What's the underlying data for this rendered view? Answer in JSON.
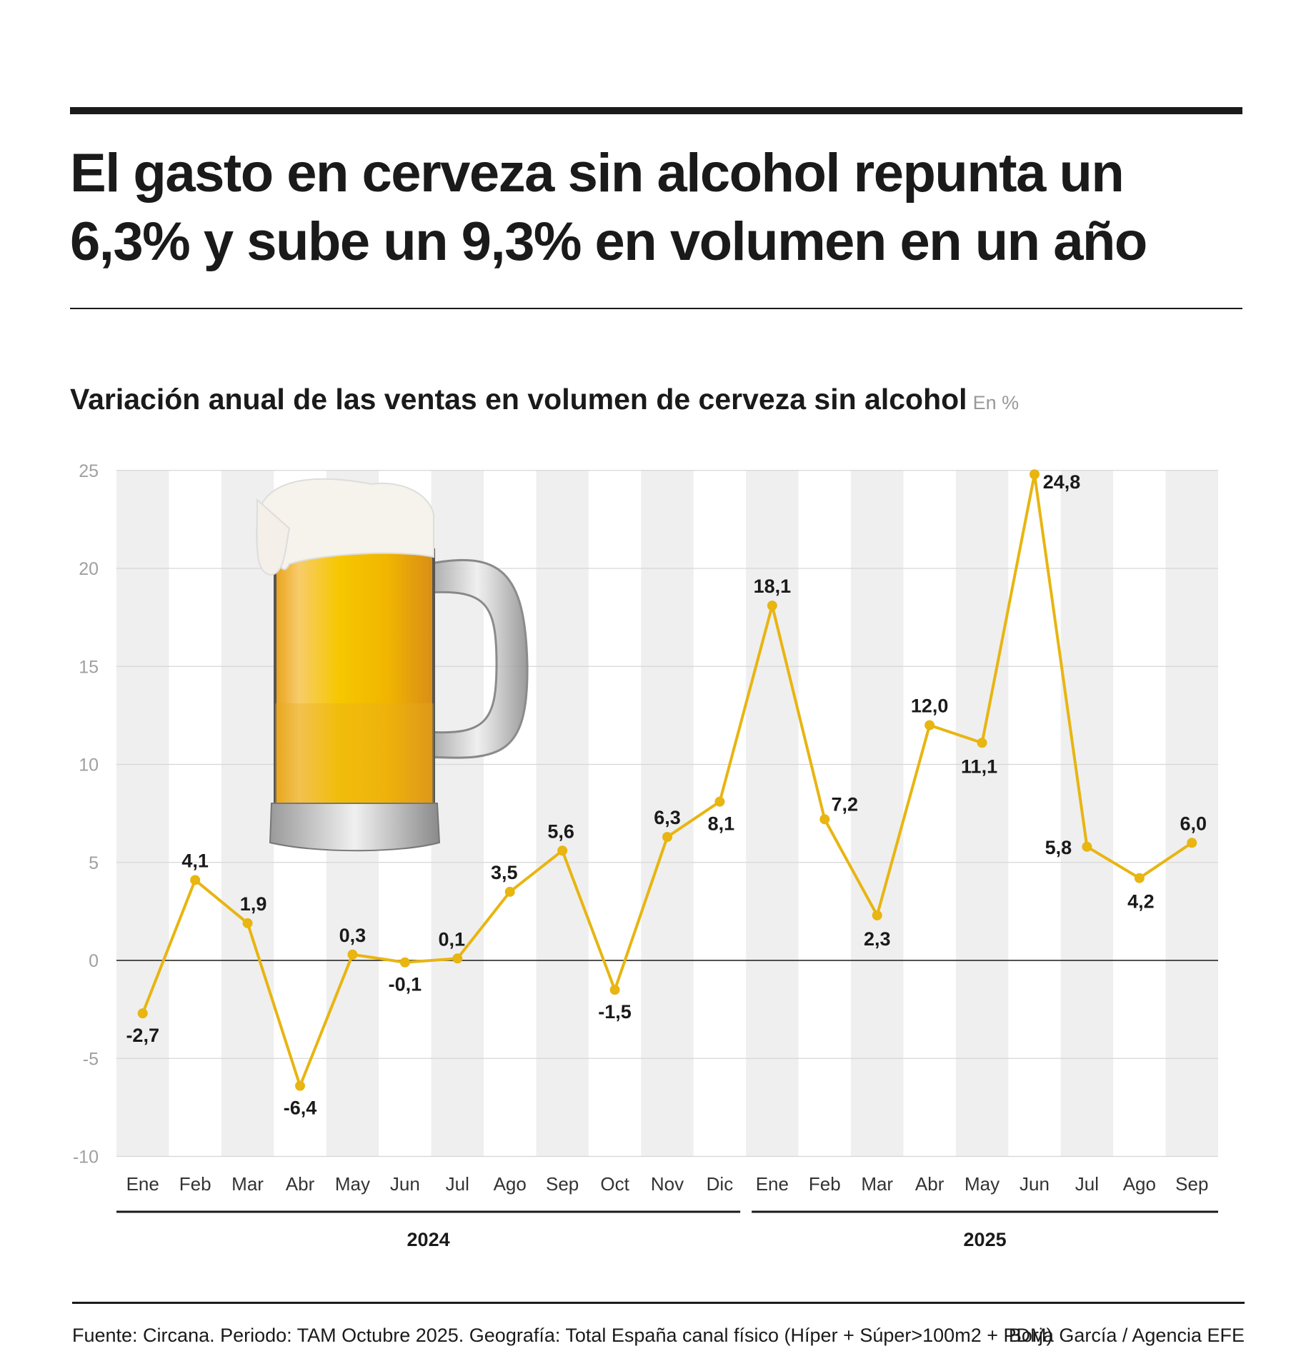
{
  "title": "El gasto en cerveza sin alcohol repunta un 6,3% y sube un 9,3% en volumen en un año",
  "footer": {
    "source": "Fuente: Circana. Periodo: TAM Octubre 2025. Geografía: Total España canal físico (Híper + Súper>100m2 + PDM)",
    "credit": "Borja García / Agencia EFE"
  },
  "chart_data": {
    "type": "line",
    "title": "Variación anual de las ventas en volumen de cerveza sin alcohol",
    "unit": "En %",
    "ylim": [
      -10,
      25
    ],
    "yticks": [
      25,
      20,
      15,
      10,
      5,
      0,
      -5,
      -10
    ],
    "ytick_labels": [
      "25",
      "20",
      "15",
      "10",
      "5",
      "0",
      "-5",
      "-10"
    ],
    "grid": true,
    "color": "#e8b511",
    "categories": [
      "Ene",
      "Feb",
      "Mar",
      "Abr",
      "May",
      "Jun",
      "Jul",
      "Ago",
      "Sep",
      "Oct",
      "Nov",
      "Dic",
      "Ene",
      "Feb",
      "Mar",
      "Abr",
      "May",
      "Jun",
      "Jul",
      "Ago",
      "Sep"
    ],
    "years": [
      {
        "label": "2024",
        "months": 12
      },
      {
        "label": "2025",
        "months": 9
      }
    ],
    "values": [
      -2.7,
      4.1,
      1.9,
      -6.4,
      0.3,
      -0.1,
      0.1,
      3.5,
      5.6,
      -1.5,
      6.3,
      8.1,
      18.1,
      7.2,
      2.3,
      12.0,
      11.1,
      24.8,
      5.8,
      4.2,
      6.0
    ],
    "data_labels": [
      "-2,7",
      "4,1",
      "1,9",
      "-6,4",
      "0,3",
      "-0,1",
      "0,1",
      "3,5",
      "5,6",
      "-1,5",
      "6,3",
      "8,1",
      "18,1",
      "7,2",
      "2,3",
      "12,0",
      "11,1",
      "24,8",
      "5,8",
      "4,2",
      "6,0"
    ],
    "illustration": "beer-mug"
  }
}
